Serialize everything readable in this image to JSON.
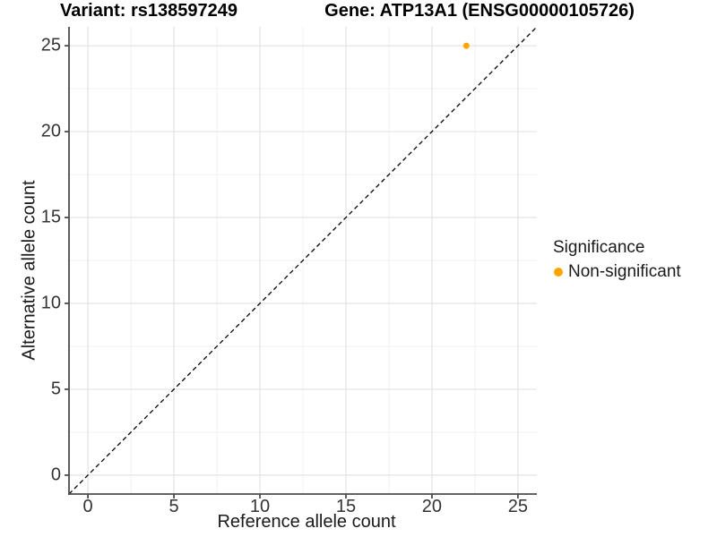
{
  "titles": {
    "variant": "Variant: rs138597249",
    "gene": "Gene: ATP13A1 (ENSG00000105726)"
  },
  "chart_data": {
    "type": "scatter",
    "title_left": "Variant: rs138597249",
    "title_right": "Gene: ATP13A1 (ENSG00000105726)",
    "xlabel": "Reference allele count",
    "ylabel": "Alternative allele count",
    "xlim": [
      -1.1,
      26.1
    ],
    "ylim": [
      -1.1,
      26.1
    ],
    "x_ticks": [
      0,
      5,
      10,
      15,
      20,
      25
    ],
    "y_ticks": [
      0,
      5,
      10,
      15,
      20,
      25
    ],
    "x_minor_ticks": [
      2.5,
      7.5,
      12.5,
      17.5,
      22.5
    ],
    "y_minor_ticks": [
      2.5,
      7.5,
      12.5,
      17.5,
      22.5
    ],
    "grid": {
      "major": true,
      "minor": true
    },
    "legend": {
      "title": "Significance",
      "position": "right",
      "entries": [
        {
          "label": "Non-significant",
          "color": "#FFA500"
        }
      ]
    },
    "series": [
      {
        "name": "Non-significant",
        "color": "#FFA500",
        "points": [
          {
            "x": 22,
            "y": 25
          }
        ]
      }
    ],
    "reference_line": {
      "type": "identity y=x",
      "style": "dashed",
      "color": "#000000"
    }
  },
  "colors": {
    "background": "#FFFFFF",
    "grid_major": "#E3E3E3",
    "grid_minor": "#EFEFEF",
    "axis_line": "#4D4D4D",
    "tick_text": "#333333",
    "title_text": "#000000",
    "point": "#FFA500"
  }
}
